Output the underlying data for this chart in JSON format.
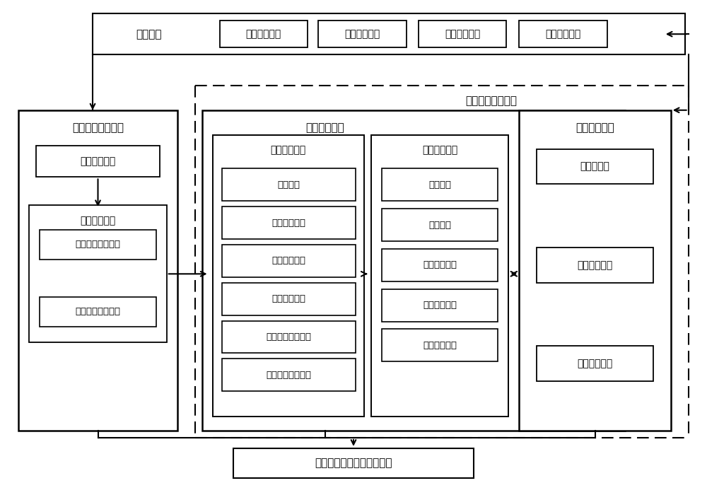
{
  "bg_color": "#ffffff",
  "top_boxes": [
    "平行执行",
    "车货匹配优化",
    "最优路线优化",
    "车货供需分析",
    "企业管理优化"
  ],
  "left_system_label": "实际物流信息系统",
  "collect_module": "数据采集模块",
  "storage_module": "数据存储模块",
  "left_sub_boxes": [
    "物理因素数据单元",
    "社会因素数据单元"
  ],
  "ai_system_label": "人工物流信息系统",
  "analysis_system_label": "数据解析系统",
  "analysis_unit_label": "数据解析单元",
  "analysis_items": [
    "司机模型",
    "车辆信息模型",
    "货物信息模型",
    "环境信息模型",
    "物流企业管理模型",
    "物流企业员工行为"
  ],
  "storage_unit_label": "数据存储单元",
  "storage_items": [
    "人工货主",
    "人工司机",
    "人工物流过程",
    "人工路线规划",
    "人工物流企业"
  ],
  "right_system_label": "计算实验系统",
  "right_boxes": [
    "云计算模块",
    "并行计算模块",
    "数据驱动模块"
  ],
  "bottom_box": "情景与交互可视化信息平台",
  "fig_width": 10.0,
  "fig_height": 6.83,
  "dpi": 100
}
